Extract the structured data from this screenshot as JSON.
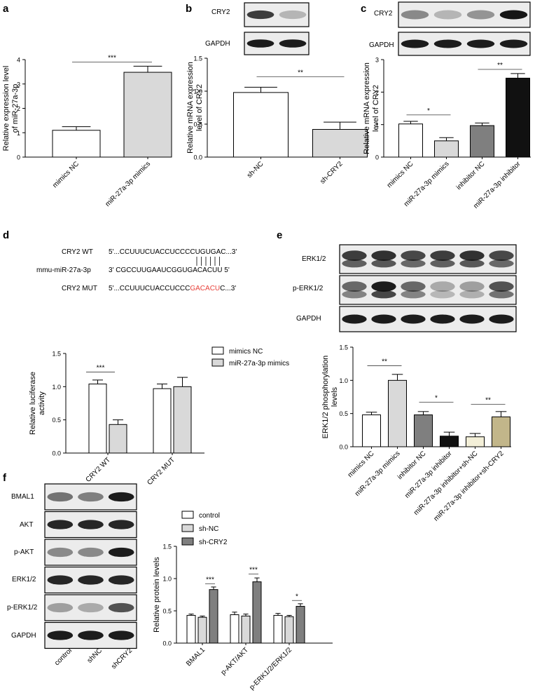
{
  "panel_labels": [
    "a",
    "b",
    "c",
    "d",
    "e",
    "f"
  ],
  "blots": {
    "b": {
      "bands": [
        "CRY2",
        "GAPDH"
      ]
    },
    "c": {
      "bands": [
        "CRY2",
        "GAPDH"
      ]
    },
    "e": {
      "bands": [
        "ERK1/2",
        "p-ERK1/2",
        "GAPDH"
      ]
    },
    "f": {
      "bands": [
        "BMAL1",
        "AKT",
        "p-AKT",
        "ERK1/2",
        "p-ERK1/2",
        "GAPDH"
      ],
      "lanes": [
        "control",
        "shNC",
        "shCRY2"
      ]
    }
  },
  "sequences": {
    "rows": [
      {
        "label": "CRY2 WT",
        "seq": "5'...CCUUUCUACCUCCCCUGUGAC...3'"
      },
      {
        "label": "mmu-miR-27a-3p",
        "seq": "3' CGCCUUGAAUCGGUGACACUU 5'"
      },
      {
        "label": "CRY2 MUT",
        "seq_pre": "5'...CCUUUCUACCUCCC",
        "seq_mut": "GACACU",
        "seq_post": "C...3'"
      }
    ],
    "mut_color": "#e8413a"
  },
  "chart_data": [
    {
      "id": "a",
      "type": "bar",
      "ylabel": "Relative expression level of miR-27a-3p",
      "ylim": [
        0,
        4
      ],
      "yticks": [
        0,
        1,
        2,
        3,
        4
      ],
      "categories": [
        "mimics NC",
        "miR-27a-3p mimics"
      ],
      "values": [
        1.1,
        3.48
      ],
      "errors": [
        0.15,
        0.25
      ],
      "colors": [
        "#ffffff",
        "#d9d9d9"
      ],
      "significance": [
        {
          "from": 0,
          "to": 1,
          "label": "***",
          "y": 3.9
        }
      ]
    },
    {
      "id": "b",
      "type": "bar",
      "ylabel": "Relative mRNA expression level of CRY2",
      "ylim": [
        0,
        1.5
      ],
      "yticks": [
        "0.0",
        "0.5",
        "1.0",
        "1.5"
      ],
      "categories": [
        "sh-NC",
        "sh-CRY2"
      ],
      "values": [
        0.98,
        0.42
      ],
      "errors": [
        0.08,
        0.11
      ],
      "colors": [
        "#ffffff",
        "#d9d9d9"
      ],
      "significance": [
        {
          "from": 0,
          "to": 1,
          "label": "**",
          "y": 1.22
        }
      ]
    },
    {
      "id": "c",
      "type": "bar",
      "ylabel": "Relative mRNA expression level of CRY2",
      "ylim": [
        0,
        3
      ],
      "yticks": [
        0,
        1,
        2,
        3
      ],
      "categories": [
        "mimics NC",
        "miR-27a-3p mimics",
        "inhibitor NC",
        "miR-27a-3p inhibitor"
      ],
      "values": [
        1.02,
        0.5,
        0.97,
        2.43
      ],
      "errors": [
        0.08,
        0.1,
        0.08,
        0.14
      ],
      "colors": [
        "#ffffff",
        "#d9d9d9",
        "#7f7f7f",
        "#111111"
      ],
      "significance": [
        {
          "from": 0,
          "to": 1,
          "label": "*",
          "y": 1.3
        },
        {
          "from": 2,
          "to": 3,
          "label": "**",
          "y": 2.7
        }
      ]
    },
    {
      "id": "d",
      "type": "bar",
      "ylabel": "Relative luciferase activity",
      "ylim": [
        0,
        1.5
      ],
      "yticks": [
        "0.0",
        "0.5",
        "1.0",
        "1.5"
      ],
      "categories": [
        "CRY2 WT",
        "CRY2 MUT"
      ],
      "series": [
        {
          "name": "mimics NC",
          "values": [
            1.04,
            0.97
          ],
          "errors": [
            0.06,
            0.07
          ],
          "color": "#ffffff"
        },
        {
          "name": "miR-27a-3p mimics",
          "values": [
            0.43,
            1.0
          ],
          "errors": [
            0.07,
            0.14
          ],
          "color": "#d9d9d9"
        }
      ],
      "legend": "top-right",
      "significance": [
        {
          "cat": 0,
          "label": "***",
          "y": 1.22
        }
      ]
    },
    {
      "id": "e",
      "type": "bar",
      "ylabel": "ERK1/2 phosphorylation levels",
      "ylim": [
        0,
        1.5
      ],
      "yticks": [
        "0.0",
        "0.5",
        "1.0",
        "1.5"
      ],
      "categories": [
        "mimics NC",
        "miR-27a-3p mimics",
        "inhibitor NC",
        "miR-27a-3p inhibitor",
        "miR-27a-3p inhibitor+sh-NC",
        "miR-27a-3p inhibitor+sh-CRY2"
      ],
      "values": [
        0.48,
        1.0,
        0.48,
        0.16,
        0.15,
        0.45
      ],
      "errors": [
        0.04,
        0.09,
        0.05,
        0.06,
        0.05,
        0.08
      ],
      "colors": [
        "#ffffff",
        "#d9d9d9",
        "#7f7f7f",
        "#111111",
        "#f3efd8",
        "#c2b68a"
      ],
      "significance": [
        {
          "from": 0,
          "to": 1,
          "label": "**",
          "y": 1.22
        },
        {
          "from": 2,
          "to": 3,
          "label": "*",
          "y": 0.67
        },
        {
          "from": 4,
          "to": 5,
          "label": "**",
          "y": 0.64
        }
      ]
    },
    {
      "id": "f",
      "type": "bar",
      "ylabel": "Relative protein levels",
      "ylim": [
        0,
        1.5
      ],
      "yticks": [
        "0.0",
        "0.5",
        "1.0",
        "1.5"
      ],
      "categories": [
        "BMAL1",
        "p-AKT/AKT",
        "p-ERK1/2/ERK1/2"
      ],
      "series": [
        {
          "name": "control",
          "values": [
            0.43,
            0.44,
            0.43
          ],
          "errors": [
            0.02,
            0.04,
            0.03
          ],
          "color": "#ffffff"
        },
        {
          "name": "sh-NC",
          "values": [
            0.4,
            0.42,
            0.41
          ],
          "errors": [
            0.02,
            0.03,
            0.02
          ],
          "color": "#d9d9d9"
        },
        {
          "name": "sh-CRY2",
          "values": [
            0.83,
            0.95,
            0.57
          ],
          "errors": [
            0.04,
            0.06,
            0.04
          ],
          "color": "#7f7f7f"
        }
      ],
      "legend": "top-left",
      "significance": [
        {
          "cat": 0,
          "label": "***",
          "y": 0.92
        },
        {
          "cat": 1,
          "label": "***",
          "y": 1.07
        },
        {
          "cat": 2,
          "label": "*",
          "y": 0.66
        }
      ]
    }
  ]
}
